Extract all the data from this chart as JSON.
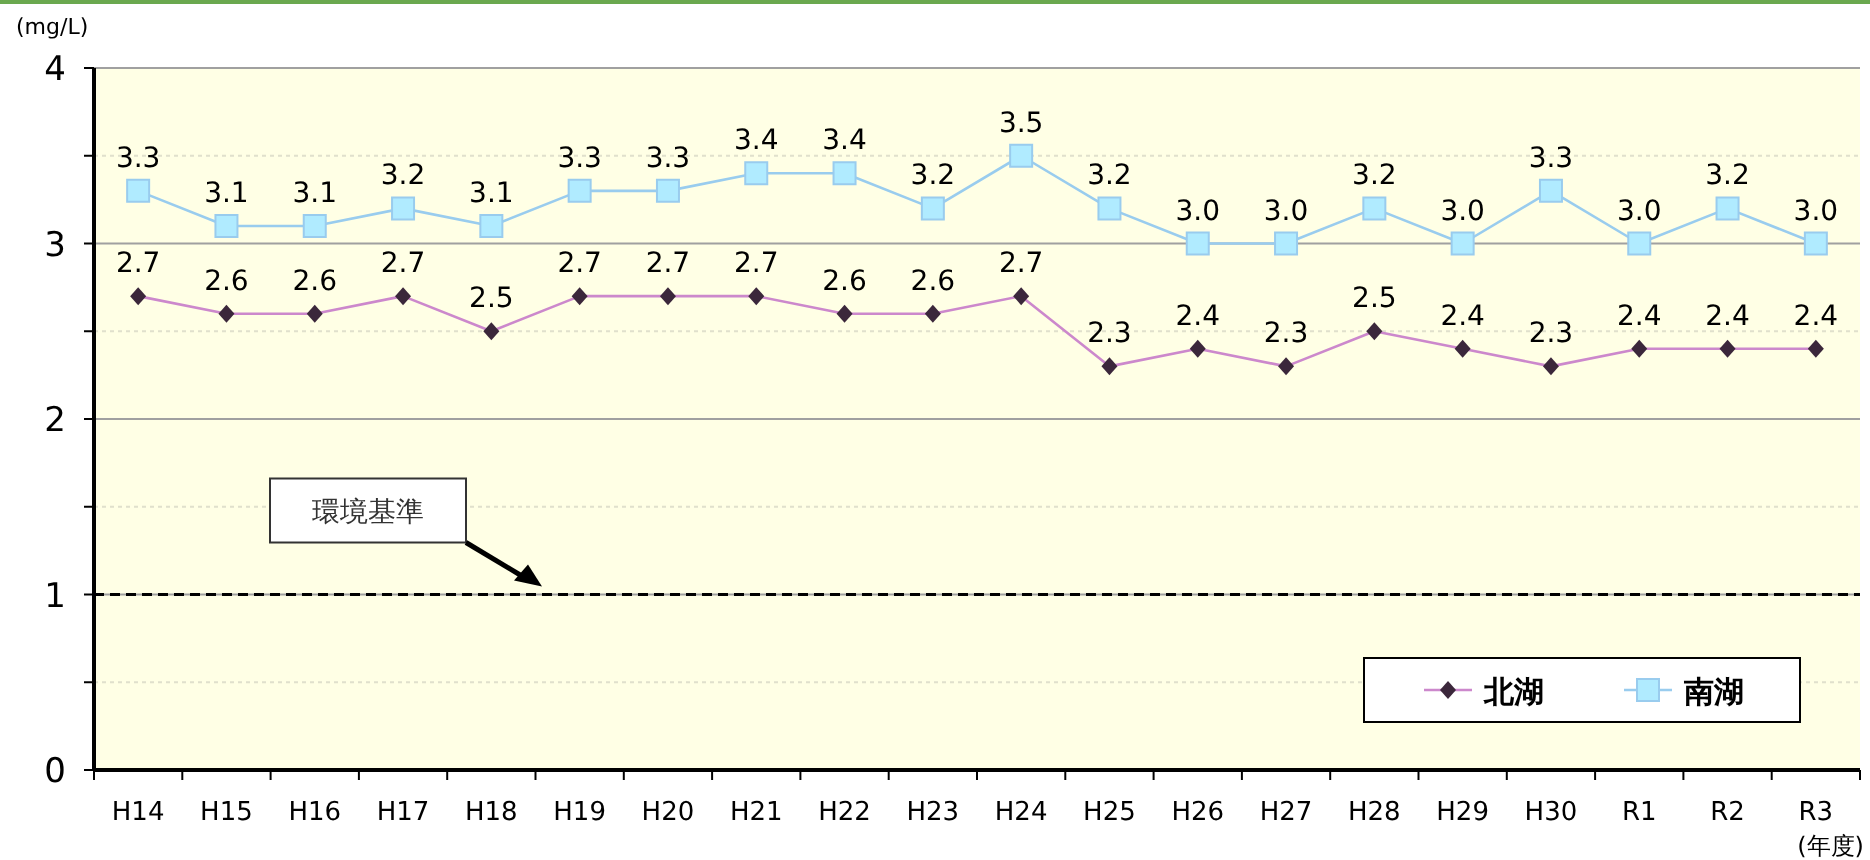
{
  "chart_data": {
    "type": "line",
    "ylabel": "(mg/L)",
    "xlabel": "(年度)",
    "categories": [
      "H14",
      "H15",
      "H16",
      "H17",
      "H18",
      "H19",
      "H20",
      "H21",
      "H22",
      "H23",
      "H24",
      "H25",
      "H26",
      "H27",
      "H28",
      "H29",
      "H30",
      "R1",
      "R2",
      "R3"
    ],
    "series": [
      {
        "name": "北湖",
        "color": "#cc88cc",
        "marker": "diamond",
        "values": [
          2.7,
          2.6,
          2.6,
          2.7,
          2.5,
          2.7,
          2.7,
          2.7,
          2.6,
          2.6,
          2.7,
          2.3,
          2.4,
          2.3,
          2.5,
          2.4,
          2.3,
          2.4,
          2.4,
          2.4
        ],
        "value_labels": [
          "2.7",
          "2.6",
          "2.6",
          "2.7",
          "2.5",
          "2.7",
          "2.7",
          "2.7",
          "2.6",
          "2.6",
          "2.7",
          "2.3",
          "2.4",
          "2.3",
          "2.5",
          "2.4",
          "2.3",
          "2.4",
          "2.4",
          "2.4"
        ]
      },
      {
        "name": "南湖",
        "color": "#99ccee",
        "marker": "square",
        "values": [
          3.3,
          3.1,
          3.1,
          3.2,
          3.1,
          3.3,
          3.3,
          3.4,
          3.4,
          3.2,
          3.5,
          3.2,
          3.0,
          3.0,
          3.2,
          3.0,
          3.3,
          3.0,
          3.2,
          3.0
        ],
        "value_labels": [
          "3.3",
          "3.1",
          "3.1",
          "3.2",
          "3.1",
          "3.3",
          "3.3",
          "3.4",
          "3.4",
          "3.2",
          "3.5",
          "3.2",
          "3.0",
          "3.0",
          "3.2",
          "3.0",
          "3.3",
          "3.0",
          "3.2",
          "3.0"
        ]
      }
    ],
    "ylim": [
      0,
      4
    ],
    "yticks": [
      0,
      {
        "value": 0.5,
        "label": null
      },
      1,
      {
        "value": 1.5,
        "label": null
      },
      2,
      {
        "value": 2.5,
        "label": null
      },
      3,
      {
        "value": 3.5,
        "label": null
      },
      4
    ],
    "grid": "y",
    "legend": "bottom right",
    "ref_lines": [
      {
        "axis": "y",
        "value": 1,
        "label": "環境基準",
        "color": "#000000",
        "line_style": "dashed"
      }
    ]
  }
}
